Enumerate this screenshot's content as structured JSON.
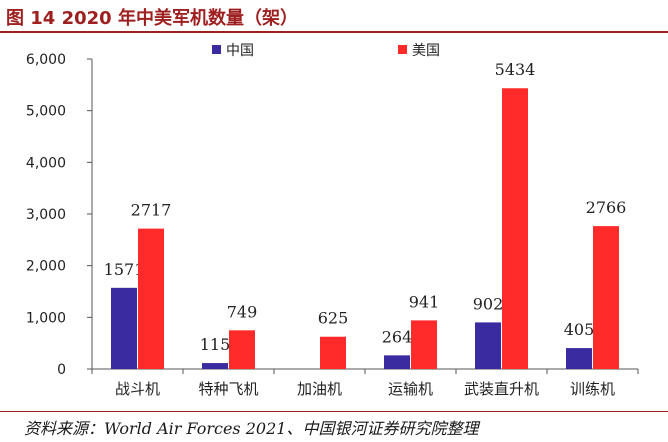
{
  "figure": {
    "title": "图 14  2020 年中美军机数量（架）",
    "source": "资料来源：World Air Forces 2021、中国银河证券研究院整理"
  },
  "colors": {
    "china": "#3b2ba0",
    "usa": "#ff2b2b",
    "accent": "#9e1f1f"
  },
  "chart_data": {
    "type": "bar",
    "categories": [
      "战斗机",
      "特种飞机",
      "加油机",
      "运输机",
      "武装直升机",
      "训练机"
    ],
    "series": [
      {
        "name": "中国",
        "values": [
          1571,
          115,
          null,
          264,
          902,
          405
        ],
        "labels": [
          "1571",
          "115",
          "",
          "264",
          "902",
          "405"
        ]
      },
      {
        "name": "美国",
        "values": [
          2717,
          749,
          625,
          941,
          5434,
          2766
        ],
        "labels": [
          "2717",
          "749",
          "625",
          "941",
          "5434",
          "2766"
        ]
      }
    ],
    "ylim": [
      0,
      6000
    ],
    "yticks": [
      0,
      1000,
      2000,
      3000,
      4000,
      5000,
      6000
    ],
    "ytick_labels": [
      "0",
      "1,000",
      "2,000",
      "3,000",
      "4,000",
      "5,000",
      "6,000"
    ],
    "legend_position": "top",
    "grid": false
  }
}
